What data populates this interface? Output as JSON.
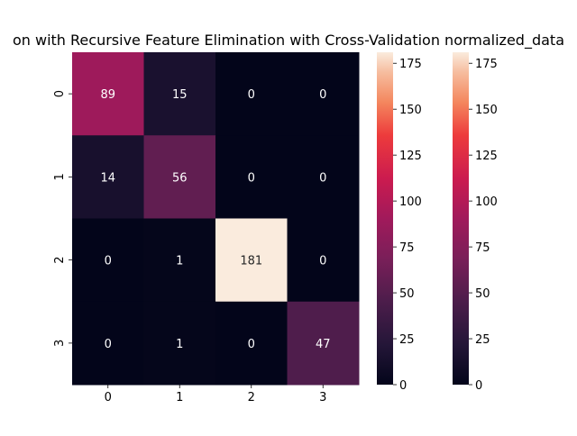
{
  "chart_data": {
    "type": "heatmap",
    "title": "on with Recursive Feature Elimination with Cross-Validation normalized_data",
    "xlabel": "",
    "ylabel": "",
    "x_ticks": [
      "0",
      "1",
      "2",
      "3"
    ],
    "y_ticks": [
      "0",
      "1",
      "2",
      "3"
    ],
    "matrix": [
      [
        89,
        15,
        0,
        0
      ],
      [
        14,
        56,
        0,
        0
      ],
      [
        0,
        1,
        181,
        0
      ],
      [
        0,
        1,
        0,
        47
      ]
    ],
    "vmin": 0,
    "vmax": 181,
    "colormap": "rocket",
    "colorbar_ticks": [
      0,
      25,
      50,
      75,
      100,
      125,
      150,
      175
    ],
    "colorbar_count": 2,
    "annot_colors": {
      "on_dark": "#ffffff",
      "on_light": "#262626"
    },
    "grid": false
  }
}
